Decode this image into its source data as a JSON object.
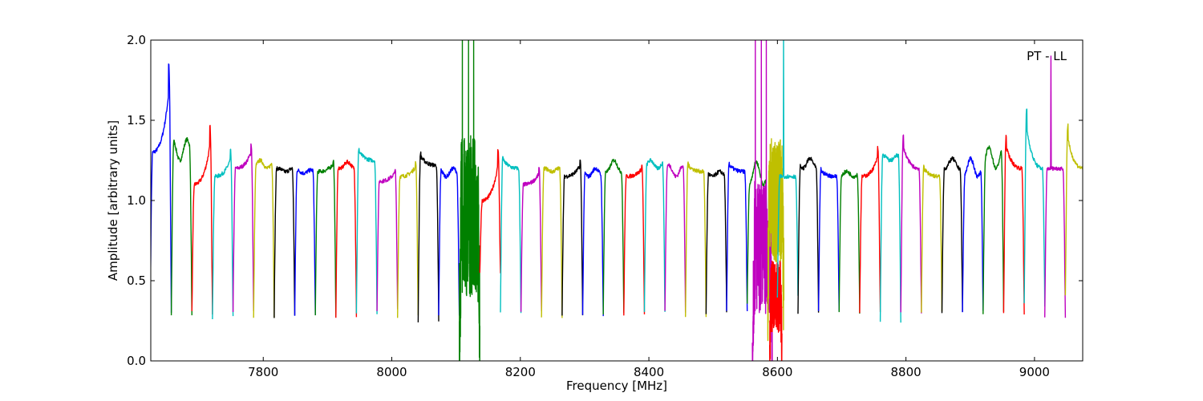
{
  "chart_data": {
    "type": "line",
    "title": "",
    "annotation": "PT - LL",
    "xlabel": "Frequency [MHz]",
    "ylabel": "Amplitude [arbitrary units]",
    "xlim": [
      7625,
      9075
    ],
    "ylim": [
      0.0,
      2.0
    ],
    "x_ticks": [
      7800,
      8000,
      8200,
      8400,
      8600,
      8800,
      9000
    ],
    "y_ticks": [
      "0.0",
      "0.5",
      "1.0",
      "1.5",
      "2.0"
    ],
    "grid": false,
    "legend": "none",
    "colors": [
      "#0000ff",
      "#008000",
      "#ff0000",
      "#00bfbf",
      "#bf00bf",
      "#bfbf00",
      "#000000"
    ],
    "channel_width_mhz": 32,
    "series": [
      {
        "color": "#0000ff",
        "x_start": 7624,
        "x_end": 7657,
        "min": 0.3,
        "mid": 1.3,
        "peak": 1.85,
        "shape": "rise"
      },
      {
        "color": "#008000",
        "x_start": 7657,
        "x_end": 7689,
        "min": 0.28,
        "mid": 1.25,
        "peak": 1.38,
        "shape": "flat"
      },
      {
        "color": "#ff0000",
        "x_start": 7689,
        "x_end": 7721,
        "min": 0.3,
        "mid": 1.1,
        "peak": 1.46,
        "shape": "rise"
      },
      {
        "color": "#00bfbf",
        "x_start": 7721,
        "x_end": 7753,
        "min": 0.27,
        "mid": 1.15,
        "peak": 1.31,
        "shape": "rise"
      },
      {
        "color": "#bf00bf",
        "x_start": 7753,
        "x_end": 7785,
        "min": 0.3,
        "mid": 1.2,
        "peak": 1.35,
        "shape": "rise"
      },
      {
        "color": "#bfbf00",
        "x_start": 7785,
        "x_end": 7817,
        "min": 0.28,
        "mid": 1.2,
        "peak": 1.25,
        "shape": "flat"
      },
      {
        "color": "#000000",
        "x_start": 7817,
        "x_end": 7849,
        "min": 0.28,
        "mid": 1.18,
        "peak": 1.2,
        "shape": "flat"
      },
      {
        "color": "#0000ff",
        "x_start": 7849,
        "x_end": 7881,
        "min": 0.28,
        "mid": 1.17,
        "peak": 1.19,
        "shape": "flat"
      },
      {
        "color": "#008000",
        "x_start": 7881,
        "x_end": 7913,
        "min": 0.28,
        "mid": 1.18,
        "peak": 1.25,
        "shape": "rise"
      },
      {
        "color": "#ff0000",
        "x_start": 7913,
        "x_end": 7945,
        "min": 0.28,
        "mid": 1.2,
        "peak": 1.24,
        "shape": "flat"
      },
      {
        "color": "#00bfbf",
        "x_start": 7945,
        "x_end": 7977,
        "min": 0.3,
        "mid": 1.25,
        "peak": 1.33,
        "shape": "fall"
      },
      {
        "color": "#bf00bf",
        "x_start": 7977,
        "x_end": 8009,
        "min": 0.32,
        "mid": 1.12,
        "peak": 1.2,
        "shape": "rise"
      },
      {
        "color": "#bfbf00",
        "x_start": 8009,
        "x_end": 8041,
        "min": 0.28,
        "mid": 1.15,
        "peak": 1.24,
        "shape": "rise"
      },
      {
        "color": "#000000",
        "x_start": 8041,
        "x_end": 8073,
        "min": 0.25,
        "mid": 1.22,
        "peak": 1.3,
        "shape": "fall"
      },
      {
        "color": "#0000ff",
        "x_start": 8073,
        "x_end": 8105,
        "min": 0.28,
        "mid": 1.15,
        "peak": 1.2,
        "shape": "flat"
      },
      {
        "color": "#008000",
        "x_start": 8105,
        "x_end": 8137,
        "min": 0.06,
        "mid": 0.9,
        "peak": 2.0,
        "shape": "noisy"
      },
      {
        "color": "#ff0000",
        "x_start": 8137,
        "x_end": 8169,
        "min": 0.55,
        "mid": 1.0,
        "peak": 1.32,
        "shape": "rise"
      },
      {
        "color": "#00bfbf",
        "x_start": 8169,
        "x_end": 8201,
        "min": 0.3,
        "mid": 1.2,
        "peak": 1.28,
        "shape": "fall"
      },
      {
        "color": "#bf00bf",
        "x_start": 8201,
        "x_end": 8233,
        "min": 0.3,
        "mid": 1.1,
        "peak": 1.2,
        "shape": "rise"
      },
      {
        "color": "#bfbf00",
        "x_start": 8233,
        "x_end": 8265,
        "min": 0.28,
        "mid": 1.18,
        "peak": 1.2,
        "shape": "flat"
      },
      {
        "color": "#000000",
        "x_start": 8265,
        "x_end": 8297,
        "min": 0.28,
        "mid": 1.15,
        "peak": 1.25,
        "shape": "rise"
      },
      {
        "color": "#0000ff",
        "x_start": 8297,
        "x_end": 8329,
        "min": 0.28,
        "mid": 1.15,
        "peak": 1.2,
        "shape": "flat"
      },
      {
        "color": "#008000",
        "x_start": 8329,
        "x_end": 8361,
        "min": 0.3,
        "mid": 1.18,
        "peak": 1.25,
        "shape": "flat"
      },
      {
        "color": "#ff0000",
        "x_start": 8361,
        "x_end": 8393,
        "min": 0.28,
        "mid": 1.15,
        "peak": 1.22,
        "shape": "rise"
      },
      {
        "color": "#00bfbf",
        "x_start": 8393,
        "x_end": 8425,
        "min": 0.3,
        "mid": 1.2,
        "peak": 1.25,
        "shape": "flat"
      },
      {
        "color": "#bf00bf",
        "x_start": 8425,
        "x_end": 8457,
        "min": 0.3,
        "mid": 1.15,
        "peak": 1.22,
        "shape": "flat"
      },
      {
        "color": "#bfbf00",
        "x_start": 8457,
        "x_end": 8489,
        "min": 0.28,
        "mid": 1.18,
        "peak": 1.24,
        "shape": "fall"
      },
      {
        "color": "#000000",
        "x_start": 8489,
        "x_end": 8521,
        "min": 0.3,
        "mid": 1.15,
        "peak": 1.18,
        "shape": "flat"
      },
      {
        "color": "#0000ff",
        "x_start": 8521,
        "x_end": 8553,
        "min": 0.3,
        "mid": 1.18,
        "peak": 1.24,
        "shape": "fall"
      },
      {
        "color": "#008000",
        "x_start": 8553,
        "x_end": 8585,
        "min": 0.35,
        "mid": 1.1,
        "peak": 1.24,
        "shape": "flat"
      },
      {
        "color": "#bf00bf",
        "x_start": 8561,
        "x_end": 8592,
        "min": 0.0,
        "mid": 0.7,
        "peak": 2.0,
        "shape": "noisy"
      },
      {
        "color": "#bfbf00",
        "x_start": 8585,
        "x_end": 8610,
        "min": 0.35,
        "mid": 1.0,
        "peak": 1.35,
        "shape": "noisy"
      },
      {
        "color": "#ff0000",
        "x_start": 8588,
        "x_end": 8607,
        "min": 0.03,
        "mid": 0.4,
        "peak": 0.6,
        "shape": "noisy"
      },
      {
        "color": "#00bfbf",
        "x_start": 8600,
        "x_end": 8632,
        "min": 0.4,
        "mid": 1.15,
        "peak": 2.0,
        "shape": "spike"
      },
      {
        "color": "#000000",
        "x_start": 8632,
        "x_end": 8664,
        "min": 0.3,
        "mid": 1.2,
        "peak": 1.26,
        "shape": "flat"
      },
      {
        "color": "#0000ff",
        "x_start": 8664,
        "x_end": 8696,
        "min": 0.3,
        "mid": 1.15,
        "peak": 1.2,
        "shape": "fall"
      },
      {
        "color": "#008000",
        "x_start": 8696,
        "x_end": 8728,
        "min": 0.3,
        "mid": 1.15,
        "peak": 1.18,
        "shape": "flat"
      },
      {
        "color": "#ff0000",
        "x_start": 8728,
        "x_end": 8760,
        "min": 0.3,
        "mid": 1.15,
        "peak": 1.33,
        "shape": "rise"
      },
      {
        "color": "#00bfbf",
        "x_start": 8760,
        "x_end": 8792,
        "min": 0.25,
        "mid": 1.25,
        "peak": 1.28,
        "shape": "flat"
      },
      {
        "color": "#bf00bf",
        "x_start": 8792,
        "x_end": 8824,
        "min": 0.3,
        "mid": 1.2,
        "peak": 1.4,
        "shape": "fall"
      },
      {
        "color": "#bfbf00",
        "x_start": 8824,
        "x_end": 8856,
        "min": 0.3,
        "mid": 1.15,
        "peak": 1.22,
        "shape": "fall"
      },
      {
        "color": "#000000",
        "x_start": 8856,
        "x_end": 8888,
        "min": 0.3,
        "mid": 1.2,
        "peak": 1.26,
        "shape": "flat"
      },
      {
        "color": "#0000ff",
        "x_start": 8888,
        "x_end": 8920,
        "min": 0.3,
        "mid": 1.15,
        "peak": 1.26,
        "shape": "flat"
      },
      {
        "color": "#008000",
        "x_start": 8920,
        "x_end": 8952,
        "min": 0.3,
        "mid": 1.2,
        "peak": 1.33,
        "shape": "flat"
      },
      {
        "color": "#ff0000",
        "x_start": 8952,
        "x_end": 8984,
        "min": 0.3,
        "mid": 1.2,
        "peak": 1.4,
        "shape": "fall"
      },
      {
        "color": "#00bfbf",
        "x_start": 8984,
        "x_end": 9016,
        "min": 0.35,
        "mid": 1.2,
        "peak": 1.57,
        "shape": "fall"
      },
      {
        "color": "#bf00bf",
        "x_start": 9016,
        "x_end": 9048,
        "min": 0.27,
        "mid": 1.2,
        "peak": 1.9,
        "shape": "spike"
      },
      {
        "color": "#bfbf00",
        "x_start": 9048,
        "x_end": 9080,
        "min": 0.4,
        "mid": 1.2,
        "peak": 1.47,
        "shape": "fall"
      }
    ]
  }
}
